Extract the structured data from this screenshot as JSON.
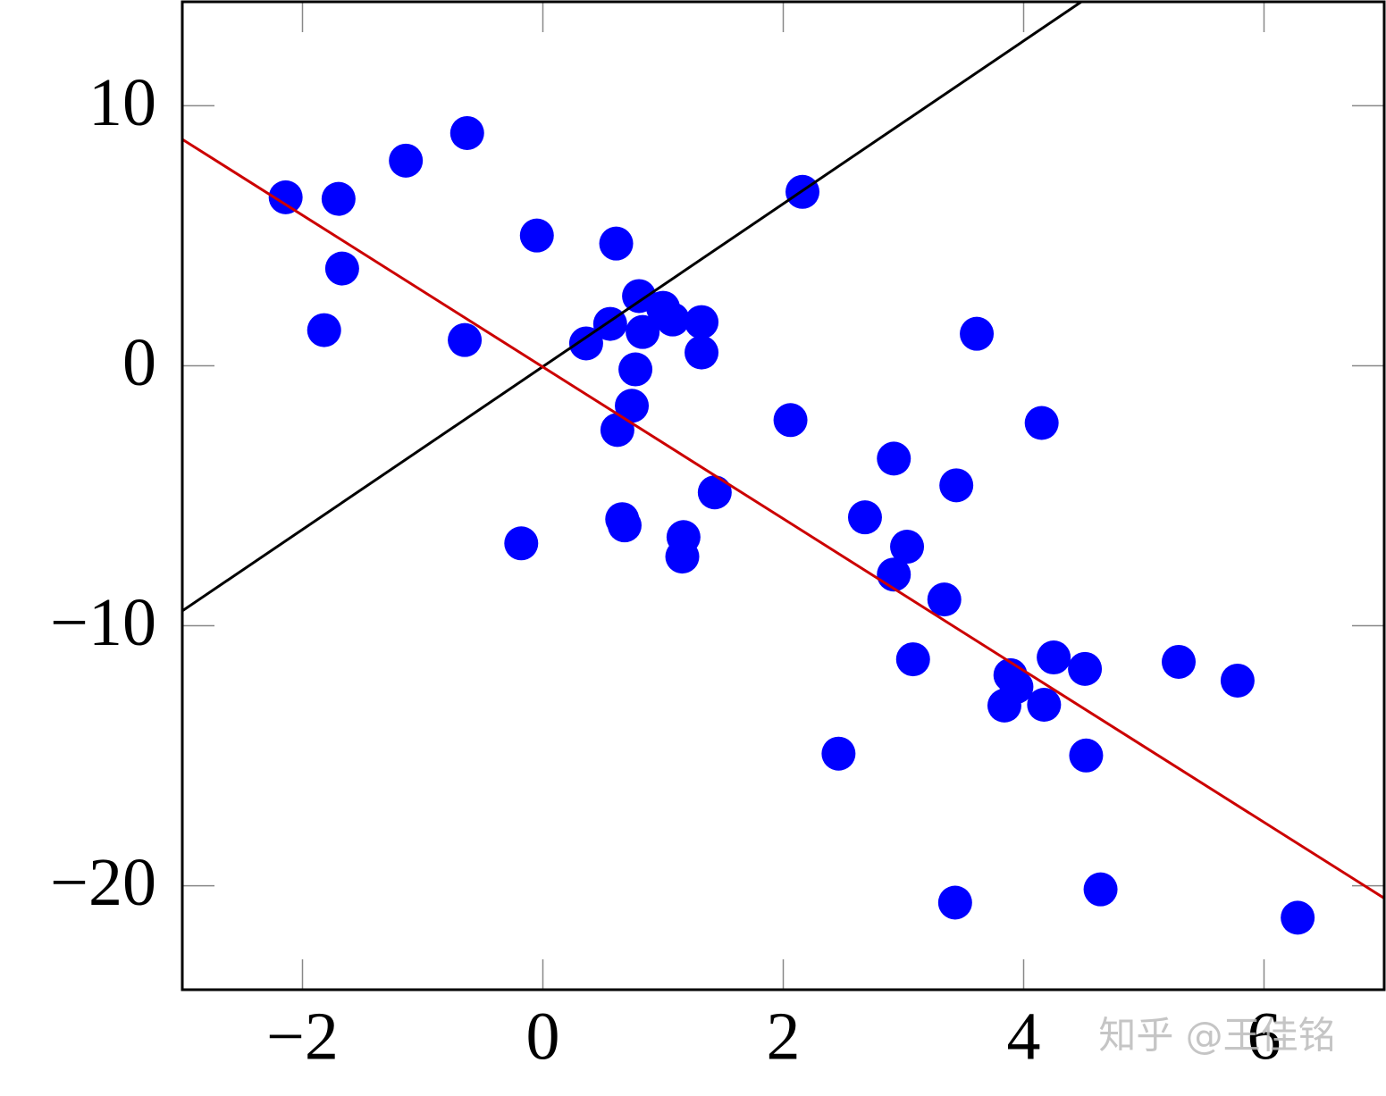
{
  "chart_data": {
    "type": "scatter",
    "xlim": [
      -3,
      7
    ],
    "ylim": [
      -24,
      14
    ],
    "xticks": [
      {
        "value": -2,
        "label": "−2"
      },
      0,
      2,
      4,
      6
    ],
    "yticks": [
      {
        "value": -20,
        "label": "−20"
      },
      {
        "value": -10,
        "label": "−10"
      },
      0,
      10
    ],
    "grid": false,
    "series": [
      {
        "color": "#0000ff",
        "x": [
          -2.14,
          -1.7,
          -1.14,
          -0.63,
          -1.67,
          -1.82,
          -0.65,
          -0.05,
          0.61,
          2.16,
          0.8,
          1.0,
          1.08,
          1.32,
          0.56,
          0.83,
          0.36,
          1.32,
          0.77,
          0.74,
          0.62,
          3.61,
          2.06,
          4.15,
          2.92,
          3.44,
          1.43,
          2.68,
          0.66,
          0.68,
          -0.18,
          1.17,
          1.16,
          3.03,
          2.92,
          3.34,
          3.08,
          4.25,
          4.51,
          5.29,
          5.78,
          3.89,
          3.94,
          3.84,
          4.17,
          2.46,
          4.52,
          3.43,
          4.64,
          6.28
        ],
        "values": [
          6.48,
          6.42,
          7.89,
          8.95,
          3.74,
          1.37,
          0.99,
          5.01,
          4.7,
          6.69,
          2.68,
          2.23,
          1.78,
          1.68,
          1.61,
          1.3,
          0.86,
          0.51,
          -0.14,
          -1.54,
          -2.47,
          1.23,
          -2.09,
          -2.2,
          -3.57,
          -4.6,
          -4.87,
          -5.83,
          -5.9,
          -6.14,
          -6.83,
          -6.59,
          -7.34,
          -6.96,
          -8.03,
          -8.99,
          -11.29,
          -11.22,
          -11.66,
          -11.39,
          -12.11,
          -11.9,
          -12.35,
          -13.07,
          -13.04,
          -14.92,
          -14.99,
          -20.65,
          -20.14,
          -21.23
        ]
      },
      {
        "color": "#000000",
        "line": true,
        "x": [
          -3,
          4.48
        ],
        "values": [
          -9.43,
          14
        ]
      },
      {
        "color": "#cc0000",
        "line": true,
        "x": [
          -3,
          7
        ],
        "values": [
          8.71,
          -20.48
        ]
      }
    ],
    "watermark": "知乎 @王佳铭"
  }
}
